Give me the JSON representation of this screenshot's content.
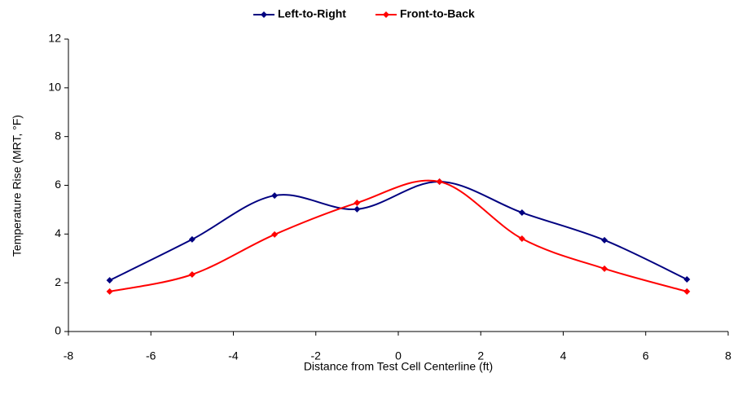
{
  "chart_data": {
    "type": "line",
    "x": [
      -7,
      -5,
      -3,
      -1,
      1,
      3,
      5,
      7
    ],
    "series": [
      {
        "name": "Left-to-Right",
        "color": "#000080",
        "values": [
          2.1,
          3.78,
          5.58,
          5.02,
          6.15,
          4.88,
          3.75,
          2.14
        ]
      },
      {
        "name": "Front-to-Back",
        "color": "#ff0000",
        "values": [
          1.64,
          2.34,
          3.98,
          5.28,
          6.15,
          3.81,
          2.58,
          1.64
        ]
      }
    ],
    "xlabel": "Distance from Test Cell Centerline (ft)",
    "ylabel": "Temperature Rise (MRT, °F)",
    "xlim": [
      -8,
      8
    ],
    "xticks": [
      -8,
      -6,
      -4,
      -2,
      0,
      2,
      4,
      6,
      8
    ],
    "ylim": [
      0,
      12
    ],
    "yticks": [
      0,
      2,
      4,
      6,
      8,
      10,
      12
    ],
    "grid": false,
    "legend": "top",
    "smooth": true
  }
}
